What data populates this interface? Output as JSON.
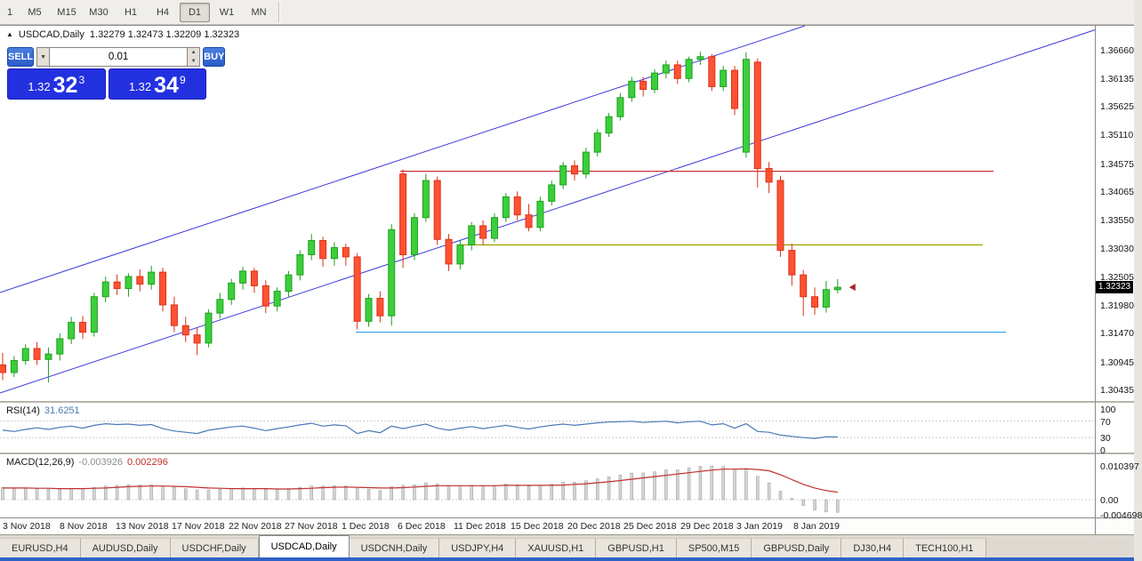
{
  "colors": {
    "candle_up": "#3bcf3b",
    "candle_up_border": "#1fa01f",
    "candle_down": "#ff5233",
    "candle_down_border": "#d93318",
    "trend_line": "#3b3bd9",
    "resistance_line": "#cc3333",
    "mid_line": "#a6a600",
    "support_line": "#3da5f0",
    "rsi_line": "#4a7ab5",
    "macd_signal": "#c03030",
    "macd_hist": "#d4d4d4",
    "macd_hist_border": "#9a9a9a",
    "price_tag_bg": "#000000",
    "panel_blue": "#2330e0"
  },
  "icons": {
    "chart_shift": "▲",
    "dropdown_arrow": "▼",
    "spinner_up": "▲",
    "spinner_down": "▼"
  },
  "toolbar": {
    "timeframes": [
      "1",
      "M5",
      "M15",
      "M30",
      "H1",
      "H4",
      "D1",
      "W1",
      "MN"
    ],
    "active": "D1"
  },
  "one_click": {
    "sell_label": "SELL",
    "buy_label": "BUY",
    "volume": "0.01",
    "sell_price_small": "1.32",
    "sell_price_big": "32",
    "sell_price_sup": "3",
    "buy_price_small": "1.32",
    "buy_price_big": "34",
    "buy_price_sup": "9"
  },
  "time_axis": [
    "3 Nov 2018",
    "8 Nov 2018",
    "13 Nov 2018",
    "17 Nov 2018",
    "22 Nov 2018",
    "27 Nov 2018",
    "1 Dec 2018",
    "6 Dec 2018",
    "11 Dec 2018",
    "15 Dec 2018",
    "20 Dec 2018",
    "25 Dec 2018",
    "29 Dec 2018",
    "3 Jan 2019",
    "8 Jan 2019"
  ],
  "tabs": [
    "EURUSD,H4",
    "AUDUSD,Daily",
    "USDCHF,Daily",
    "USDCAD,Daily",
    "USDCNH,Daily",
    "USDJPY,H4",
    "XAUUSD,H1",
    "GBPUSD,H1",
    "SP500,M15",
    "GBPUSD,Daily",
    "DJ30,H4",
    "TECH100,H1"
  ],
  "active_tab": "USDCAD,Daily",
  "chart_data": {
    "type": "candlestick",
    "title": "USDCAD,Daily",
    "info_ohlc": "1.32279 1.32473 1.32209 1.32323",
    "current_price": "1.32323",
    "ylim": [
      1.3024,
      1.3712
    ],
    "y_ticks": [
      "1.36660",
      "1.36135",
      "1.35625",
      "1.35110",
      "1.34575",
      "1.34065",
      "1.33550",
      "1.33030",
      "1.32505",
      "1.31980",
      "1.31470",
      "1.30945",
      "1.30435"
    ],
    "hlines": [
      {
        "name": "resistance-line",
        "price": 1.3445,
        "x1": 450,
        "x2": 1117,
        "color": "#cc3333"
      },
      {
        "name": "mid-line",
        "price": 1.331,
        "x1": 520,
        "x2": 1105,
        "color": "#a6a600"
      },
      {
        "name": "support-line",
        "price": 1.315,
        "x1": 400,
        "x2": 1131,
        "color": "#3da5f0"
      }
    ],
    "trendlines": [
      {
        "name": "channel-upper",
        "x1": 0,
        "price1": 1.32227,
        "x2": 905,
        "price2": 1.37116,
        "color": "#3b3bd9"
      },
      {
        "name": "channel-lower",
        "x1": 0,
        "price1": 1.30386,
        "x2": 1231,
        "price2": 1.37041,
        "color": "#3b3bd9"
      }
    ],
    "candles": [
      [
        1.309,
        1.3112,
        1.3062,
        1.3076
      ],
      [
        1.3076,
        1.3106,
        1.3068,
        1.3098
      ],
      [
        1.3098,
        1.3128,
        1.309,
        1.312
      ],
      [
        1.312,
        1.3132,
        1.309,
        1.31
      ],
      [
        1.31,
        1.3122,
        1.3058,
        1.311
      ],
      [
        1.311,
        1.3148,
        1.3098,
        1.3138
      ],
      [
        1.3138,
        1.3178,
        1.3128,
        1.3168
      ],
      [
        1.3168,
        1.318,
        1.3138,
        1.315
      ],
      [
        1.315,
        1.3222,
        1.3142,
        1.3215
      ],
      [
        1.3215,
        1.3252,
        1.3205,
        1.3242
      ],
      [
        1.3242,
        1.3256,
        1.3218,
        1.323
      ],
      [
        1.323,
        1.3258,
        1.3215,
        1.3252
      ],
      [
        1.3252,
        1.3265,
        1.3225,
        1.3238
      ],
      [
        1.3238,
        1.3272,
        1.3228,
        1.326
      ],
      [
        1.326,
        1.3268,
        1.3188,
        1.32
      ],
      [
        1.32,
        1.3215,
        1.315,
        1.3162
      ],
      [
        1.3162,
        1.3178,
        1.3132,
        1.3145
      ],
      [
        1.3145,
        1.3158,
        1.3108,
        1.313
      ],
      [
        1.313,
        1.3192,
        1.3122,
        1.3185
      ],
      [
        1.3185,
        1.3222,
        1.3175,
        1.321
      ],
      [
        1.321,
        1.3248,
        1.32,
        1.324
      ],
      [
        1.324,
        1.327,
        1.3228,
        1.3262
      ],
      [
        1.3262,
        1.3268,
        1.3222,
        1.3235
      ],
      [
        1.3235,
        1.3245,
        1.3185,
        1.3198
      ],
      [
        1.3198,
        1.3232,
        1.3188,
        1.3225
      ],
      [
        1.3225,
        1.3262,
        1.3215,
        1.3255
      ],
      [
        1.3255,
        1.33,
        1.3245,
        1.3292
      ],
      [
        1.3292,
        1.333,
        1.3282,
        1.3318
      ],
      [
        1.3318,
        1.3325,
        1.327,
        1.3285
      ],
      [
        1.3285,
        1.3315,
        1.3272,
        1.3305
      ],
      [
        1.3305,
        1.3312,
        1.3272,
        1.3288
      ],
      [
        1.3288,
        1.3295,
        1.3155,
        1.317
      ],
      [
        1.317,
        1.322,
        1.316,
        1.3212
      ],
      [
        1.3212,
        1.3225,
        1.3168,
        1.318
      ],
      [
        1.318,
        1.3348,
        1.3162,
        1.3338
      ],
      [
        1.344,
        1.3448,
        1.3268,
        1.3292
      ],
      [
        1.3292,
        1.3368,
        1.3282,
        1.336
      ],
      [
        1.336,
        1.344,
        1.3352,
        1.3428
      ],
      [
        1.3428,
        1.3435,
        1.331,
        1.332
      ],
      [
        1.332,
        1.333,
        1.3262,
        1.3275
      ],
      [
        1.3275,
        1.3318,
        1.3265,
        1.331
      ],
      [
        1.331,
        1.3352,
        1.33,
        1.3345
      ],
      [
        1.3345,
        1.3355,
        1.331,
        1.3322
      ],
      [
        1.3322,
        1.3368,
        1.3315,
        1.336
      ],
      [
        1.336,
        1.3405,
        1.3352,
        1.3398
      ],
      [
        1.3398,
        1.3408,
        1.3355,
        1.3365
      ],
      [
        1.3365,
        1.3385,
        1.3335,
        1.3342
      ],
      [
        1.3342,
        1.3398,
        1.3335,
        1.339
      ],
      [
        1.339,
        1.3428,
        1.3382,
        1.342
      ],
      [
        1.342,
        1.3462,
        1.3412,
        1.3455
      ],
      [
        1.3455,
        1.3465,
        1.3428,
        1.344
      ],
      [
        1.344,
        1.3488,
        1.3432,
        1.348
      ],
      [
        1.348,
        1.3522,
        1.3472,
        1.3515
      ],
      [
        1.3515,
        1.3552,
        1.3508,
        1.3545
      ],
      [
        1.3545,
        1.3588,
        1.3538,
        1.358
      ],
      [
        1.358,
        1.3618,
        1.3572,
        1.361
      ],
      [
        1.361,
        1.3618,
        1.3582,
        1.3595
      ],
      [
        1.3595,
        1.3632,
        1.3588,
        1.3625
      ],
      [
        1.3625,
        1.3648,
        1.3615,
        1.364
      ],
      [
        1.364,
        1.3648,
        1.3605,
        1.3615
      ],
      [
        1.3615,
        1.3655,
        1.3608,
        1.365
      ],
      [
        1.365,
        1.3664,
        1.364,
        1.3655
      ],
      [
        1.3655,
        1.366,
        1.3592,
        1.36
      ],
      [
        1.36,
        1.3638,
        1.3592,
        1.363
      ],
      [
        1.363,
        1.3638,
        1.3548,
        1.356
      ],
      [
        1.348,
        1.3663,
        1.347,
        1.365
      ],
      [
        1.3645,
        1.3652,
        1.3415,
        1.345
      ],
      [
        1.345,
        1.3462,
        1.3405,
        1.3425
      ],
      [
        1.3428,
        1.3436,
        1.3288,
        1.33
      ],
      [
        1.33,
        1.3312,
        1.3235,
        1.3255
      ],
      [
        1.3255,
        1.3264,
        1.318,
        1.3215
      ],
      [
        1.3215,
        1.3232,
        1.3182,
        1.3196
      ],
      [
        1.3196,
        1.3244,
        1.3186,
        1.3228
      ],
      [
        1.32279,
        1.32473,
        1.32209,
        1.32323
      ]
    ],
    "indicators": {
      "rsi": {
        "label": "RSI(14)",
        "value": "31.6251",
        "levels": [
          70,
          30
        ],
        "axis_ticks": [
          "100",
          "70",
          "30",
          "0"
        ],
        "values": [
          48,
          45,
          50,
          54,
          50,
          55,
          58,
          53,
          60,
          64,
          62,
          63,
          60,
          62,
          52,
          46,
          43,
          40,
          48,
          52,
          56,
          58,
          53,
          47,
          52,
          56,
          61,
          65,
          58,
          61,
          59,
          40,
          47,
          42,
          58,
          52,
          58,
          63,
          53,
          48,
          53,
          57,
          52,
          56,
          60,
          55,
          51,
          56,
          60,
          63,
          60,
          63,
          66,
          68,
          69,
          70,
          67,
          69,
          70,
          66,
          69,
          70,
          61,
          64,
          53,
          64,
          45,
          43,
          36,
          33,
          30,
          28,
          32,
          31.6
        ]
      },
      "macd": {
        "label": "MACD(12,26,9)",
        "value_main": "-0.003926",
        "value_signal": "0.002296",
        "axis_ticks": [
          "0.010397",
          "0.00",
          "-0.004698"
        ],
        "histogram": [
          0.0038,
          0.0036,
          0.0035,
          0.0034,
          0.0032,
          0.0033,
          0.0035,
          0.0034,
          0.0038,
          0.0042,
          0.0044,
          0.0046,
          0.0045,
          0.0046,
          0.0042,
          0.0038,
          0.0034,
          0.003,
          0.003,
          0.0032,
          0.0034,
          0.0036,
          0.0035,
          0.0032,
          0.0032,
          0.0034,
          0.0038,
          0.0042,
          0.0042,
          0.0043,
          0.0042,
          0.0034,
          0.0032,
          0.0028,
          0.004,
          0.0044,
          0.0046,
          0.0052,
          0.0048,
          0.0042,
          0.0042,
          0.0044,
          0.0042,
          0.0044,
          0.0048,
          0.0046,
          0.0042,
          0.0044,
          0.0048,
          0.0054,
          0.0054,
          0.0058,
          0.0064,
          0.007,
          0.0076,
          0.0082,
          0.0082,
          0.0086,
          0.0092,
          0.0092,
          0.0098,
          0.0103,
          0.0104,
          0.0102,
          0.0094,
          0.0096,
          0.0072,
          0.0052,
          0.0026,
          0.0004,
          -0.0018,
          -0.0032,
          -0.0038,
          -0.0039
        ],
        "signal": [
          0.0036,
          0.0036,
          0.0036,
          0.0035,
          0.0035,
          0.0034,
          0.0034,
          0.0034,
          0.0035,
          0.0036,
          0.0038,
          0.004,
          0.0041,
          0.0042,
          0.0042,
          0.0041,
          0.004,
          0.0038,
          0.0036,
          0.0035,
          0.0034,
          0.0034,
          0.0034,
          0.0034,
          0.0033,
          0.0033,
          0.0034,
          0.0035,
          0.0037,
          0.0038,
          0.0039,
          0.0038,
          0.0037,
          0.0036,
          0.0036,
          0.0037,
          0.0039,
          0.0041,
          0.0043,
          0.0043,
          0.0043,
          0.0043,
          0.0043,
          0.0043,
          0.0044,
          0.0044,
          0.0044,
          0.0044,
          0.0044,
          0.0045,
          0.0047,
          0.0049,
          0.0052,
          0.0055,
          0.0059,
          0.0063,
          0.0067,
          0.0071,
          0.0075,
          0.0079,
          0.0083,
          0.0087,
          0.0091,
          0.0094,
          0.0094,
          0.0095,
          0.0093,
          0.0089,
          0.0077,
          0.0062,
          0.0047,
          0.0036,
          0.0028,
          0.0023
        ]
      }
    }
  }
}
